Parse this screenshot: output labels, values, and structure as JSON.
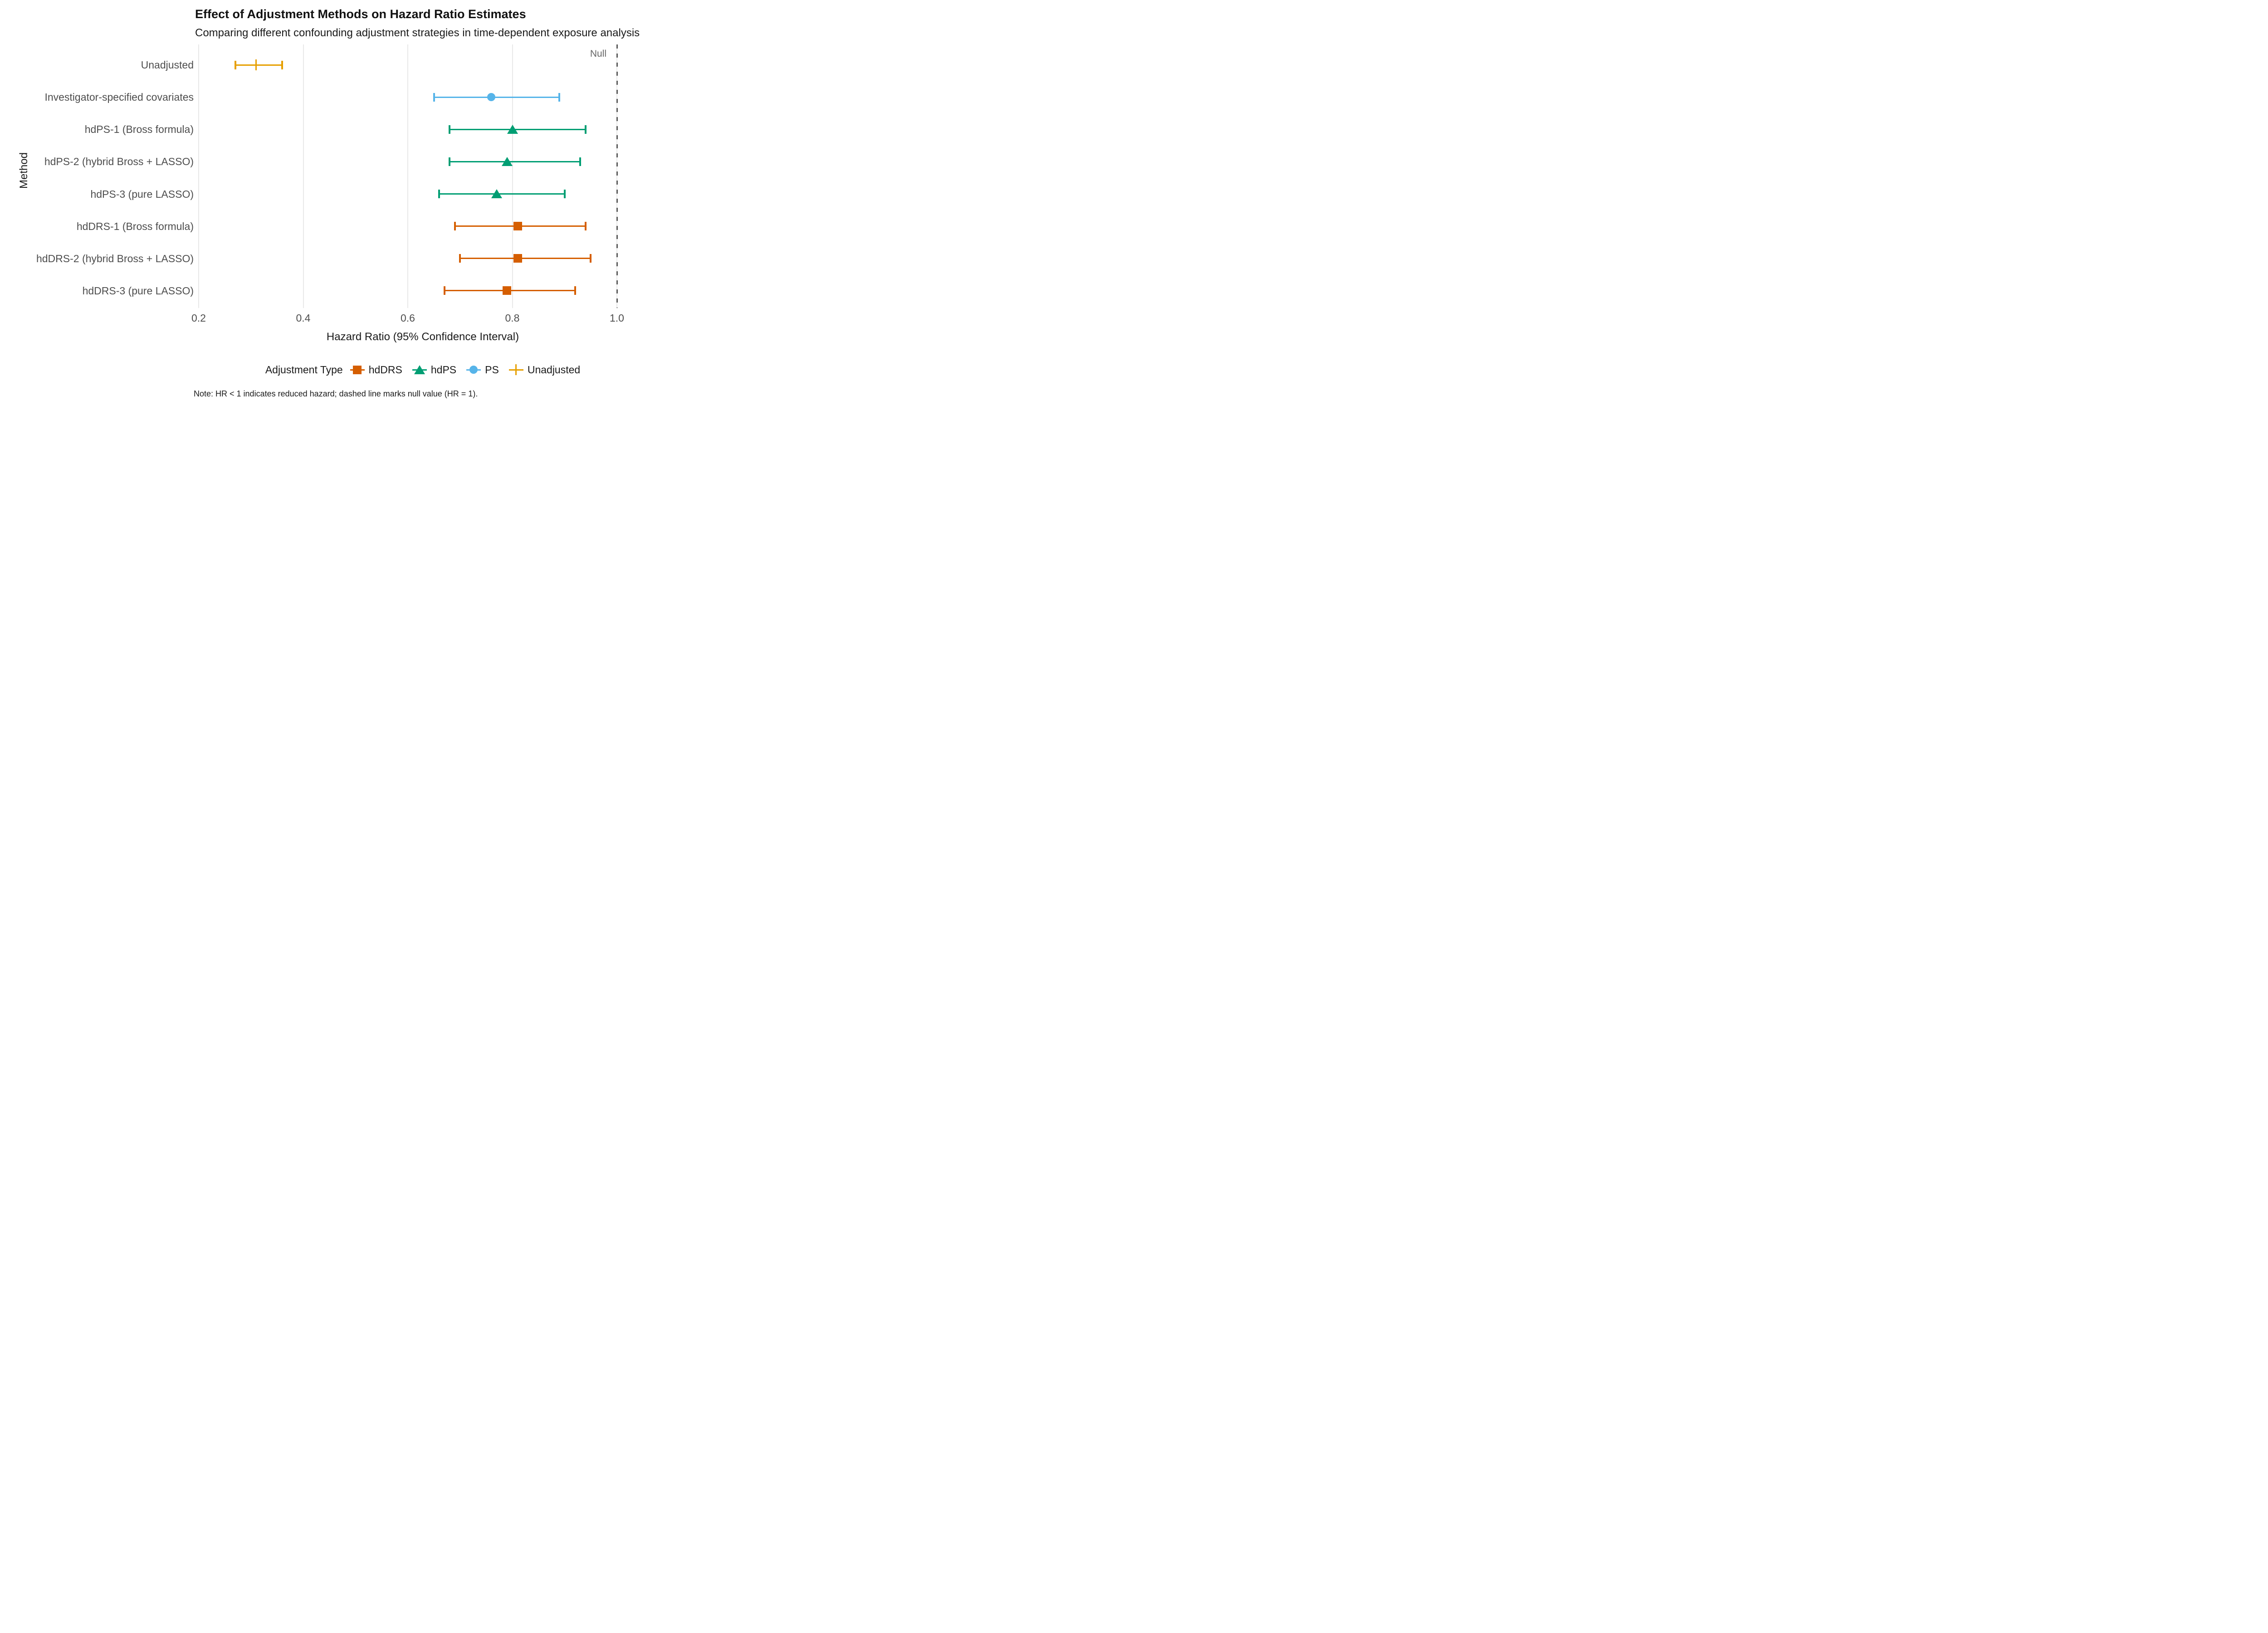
{
  "header": {
    "title": "Effect of Adjustment Methods on Hazard Ratio Estimates",
    "subtitle": "Comparing different confounding adjustment strategies in time-dependent exposure analysis"
  },
  "note": "Note: HR < 1 indicates reduced hazard; dashed line marks null value (HR = 1).",
  "legend": {
    "title": "Adjustment Type",
    "entries": [
      {
        "label": "hdDRS",
        "shape": "square",
        "color": "#D55E00"
      },
      {
        "label": "hdPS",
        "shape": "triangle",
        "color": "#009E73"
      },
      {
        "label": "PS",
        "shape": "circle",
        "color": "#56B4E9"
      },
      {
        "label": "Unadjusted",
        "shape": "plus",
        "color": "#E69F00"
      }
    ]
  },
  "chart_data": {
    "type": "scatter",
    "variant": "forest-plot-pointrange",
    "title": "Effect of Adjustment Methods on Hazard Ratio Estimates",
    "subtitle": "Comparing different confounding adjustment strategies in time-dependent exposure analysis",
    "xlabel": "Hazard Ratio (95% Confidence Interval)",
    "ylabel": "Method",
    "xlim": [
      0.2,
      1.06
    ],
    "x_ticks": [
      0.2,
      0.4,
      0.6,
      0.8,
      1.0
    ],
    "grid": "vertical-major-gridlines-only",
    "legend_position": "bottom",
    "categories": [
      "Unadjusted",
      "Investigator-specified covariates",
      "hdPS-1 (Bross formula)",
      "hdPS-2 (hybrid Bross + LASSO)",
      "hdPS-3 (pure LASSO)",
      "hdDRS-1 (Bross formula)",
      "hdDRS-2 (hybrid Bross + LASSO)",
      "hdDRS-3 (pure LASSO)"
    ],
    "points": [
      {
        "label": "Unadjusted",
        "group": "Unadjusted",
        "hr": 0.31,
        "ci_low": 0.27,
        "ci_high": 0.36,
        "shape": "vbar",
        "color": "#E69F00"
      },
      {
        "label": "Investigator-specified covariates",
        "group": "PS",
        "hr": 0.76,
        "ci_low": 0.65,
        "ci_high": 0.89,
        "shape": "circle",
        "color": "#56B4E9"
      },
      {
        "label": "hdPS-1 (Bross formula)",
        "group": "hdPS",
        "hr": 0.8,
        "ci_low": 0.68,
        "ci_high": 0.94,
        "shape": "triangle",
        "color": "#009E73"
      },
      {
        "label": "hdPS-2 (hybrid Bross + LASSO)",
        "group": "hdPS",
        "hr": 0.79,
        "ci_low": 0.68,
        "ci_high": 0.93,
        "shape": "triangle",
        "color": "#009E73"
      },
      {
        "label": "hdPS-3 (pure LASSO)",
        "group": "hdPS",
        "hr": 0.77,
        "ci_low": 0.66,
        "ci_high": 0.9,
        "shape": "triangle",
        "color": "#009E73"
      },
      {
        "label": "hdDRS-1 (Bross formula)",
        "group": "hdDRS",
        "hr": 0.81,
        "ci_low": 0.69,
        "ci_high": 0.94,
        "shape": "square",
        "color": "#D55E00"
      },
      {
        "label": "hdDRS-2 (hybrid Bross + LASSO)",
        "group": "hdDRS",
        "hr": 0.81,
        "ci_low": 0.7,
        "ci_high": 0.95,
        "shape": "square",
        "color": "#D55E00"
      },
      {
        "label": "hdDRS-3 (pure LASSO)",
        "group": "hdDRS",
        "hr": 0.79,
        "ci_low": 0.67,
        "ci_high": 0.92,
        "shape": "square",
        "color": "#D55E00"
      }
    ],
    "reference_line": {
      "x": 1.0,
      "label": "Null",
      "style": "dashed",
      "color": "#595959"
    }
  },
  "style": {
    "gridline_color": "#e8e8e8",
    "axis_text_color": "#4d4d4d",
    "background": "#ffffff"
  }
}
